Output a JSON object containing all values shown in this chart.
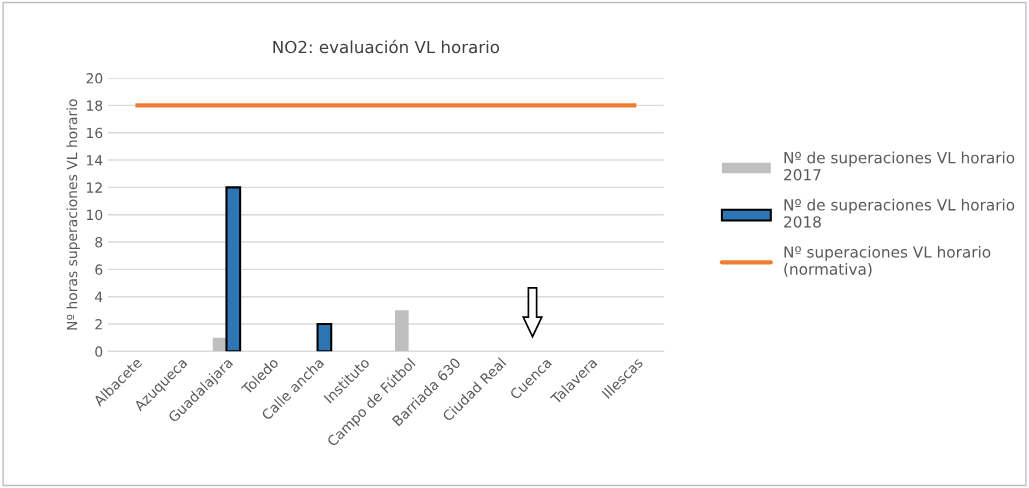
{
  "chart_data": {
    "type": "bar",
    "title": "NO2: evaluación VL horario",
    "ylabel": "Nº horas superaciones VL horario",
    "categories": [
      "Albacete",
      "Azuqueca",
      "Guadalajara",
      "Toledo",
      "Calle ancha",
      "Instituto",
      "Campo de Fútbol",
      "Barriada 630",
      "Ciudad Real",
      "Cuenca",
      "Talavera",
      "Illescas"
    ],
    "series": [
      {
        "name": "Nº de superaciones VL horario 2017",
        "color": "#bfbfbf",
        "values": [
          0,
          0,
          1,
          0,
          0,
          0,
          3,
          0,
          0,
          0,
          0,
          0
        ]
      },
      {
        "name": "Nº de superaciones VL horario 2018",
        "color": "#2e75b6",
        "values": [
          0,
          0,
          12,
          0,
          2,
          0,
          0,
          0,
          0,
          0,
          0,
          0
        ]
      },
      {
        "name": "Nº superaciones VL horario (normativa)",
        "color": "#ed7d31",
        "type": "line",
        "values": [
          18,
          18,
          18,
          18,
          18,
          18,
          18,
          18,
          18,
          18,
          18,
          18
        ]
      }
    ],
    "ylim": [
      0,
      20
    ],
    "yticks": [
      0,
      2,
      4,
      6,
      8,
      10,
      12,
      14,
      16,
      18,
      20
    ],
    "grid": "y",
    "legend": "right"
  }
}
